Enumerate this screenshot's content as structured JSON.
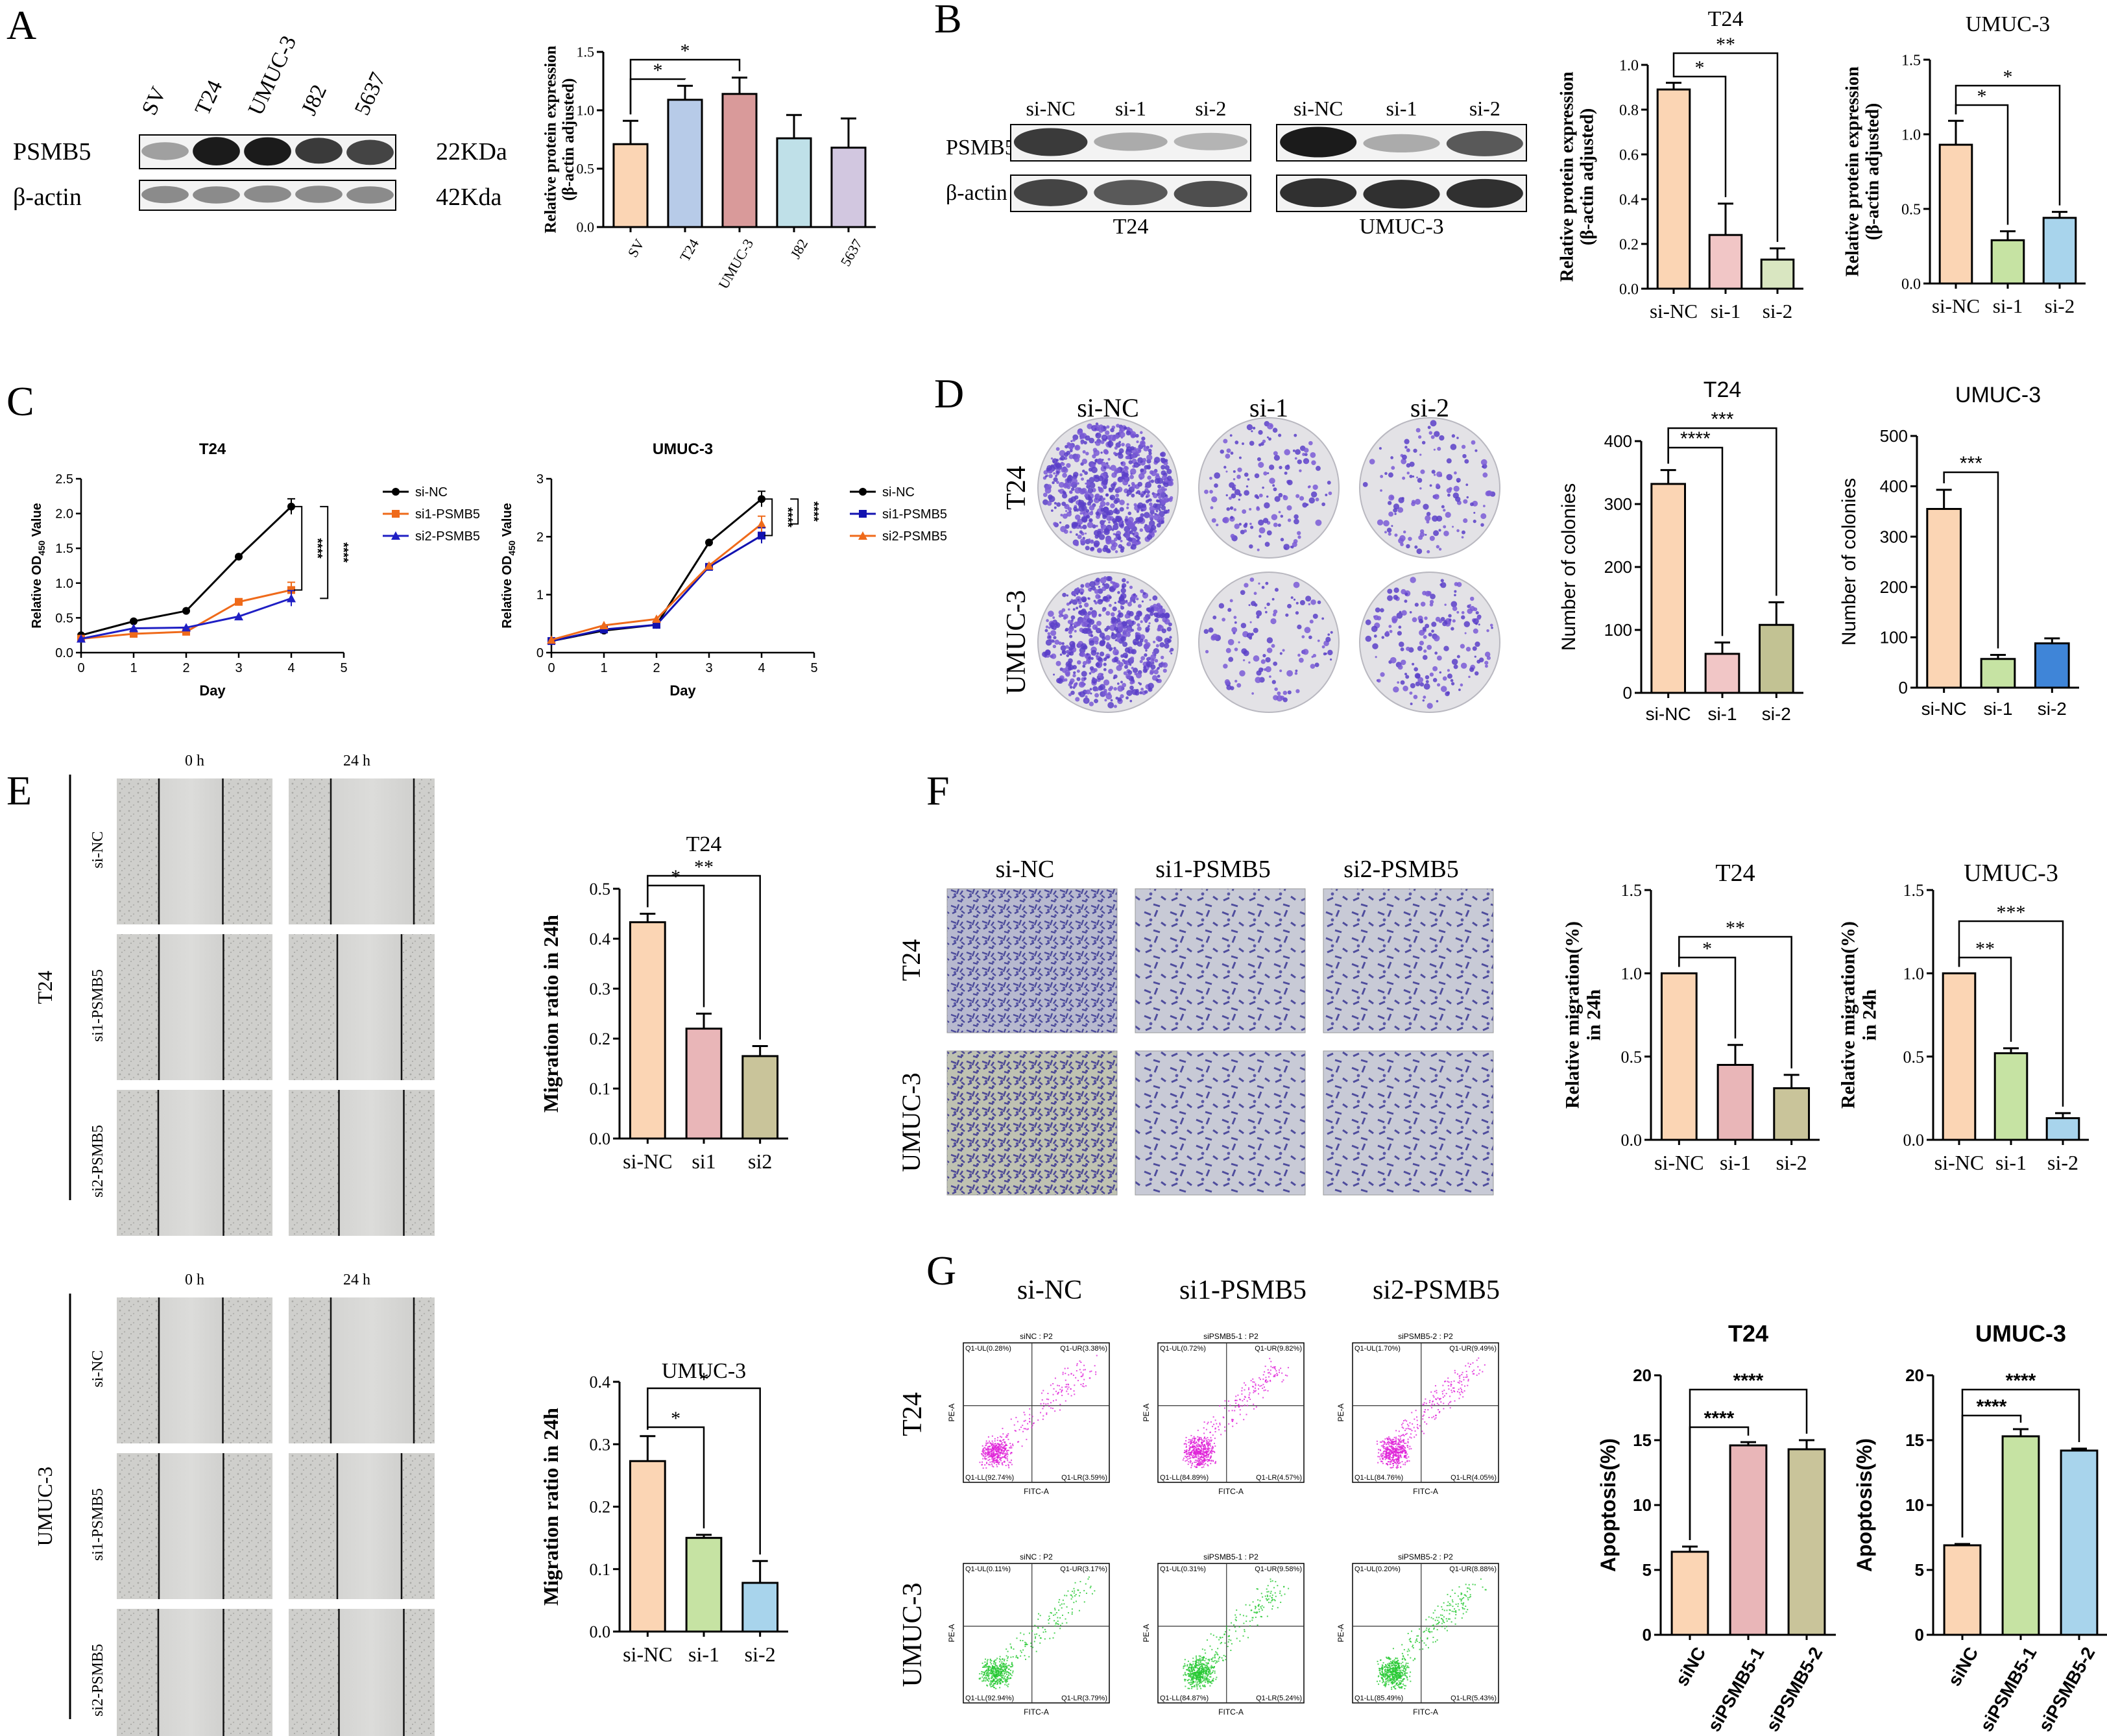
{
  "panels": {
    "A": {
      "letter": "A",
      "blot": {
        "lanes": [
          "SV",
          "T24",
          "UMUC-3",
          "J82",
          "5637"
        ],
        "rows": [
          {
            "protein": "PSMB5",
            "size": "22KDa",
            "intensity": [
              0.35,
              1.0,
              1.0,
              0.85,
              0.8
            ]
          },
          {
            "protein": "β-actin",
            "size": "42Kda",
            "intensity": [
              0.45,
              0.45,
              0.45,
              0.45,
              0.45
            ]
          }
        ]
      }
    },
    "B": {
      "letter": "B",
      "blots": [
        {
          "cell": "T24",
          "lanes": [
            "si-NC",
            "si-1",
            "si-2"
          ],
          "rows": [
            {
              "protein": "PSMB5",
              "intensity": [
                0.85,
                0.3,
                0.25
              ]
            },
            {
              "protein": "β-actin",
              "intensity": [
                0.8,
                0.7,
                0.75
              ]
            }
          ]
        },
        {
          "cell": "UMUC-3",
          "lanes": [
            "si-NC",
            "si-1",
            "si-2"
          ],
          "rows": [
            {
              "protein": "PSMB5",
              "intensity": [
                1.0,
                0.3,
                0.7
              ]
            },
            {
              "protein": "β-actin",
              "intensity": [
                0.9,
                0.9,
                0.9
              ]
            }
          ]
        }
      ]
    },
    "C": {
      "letter": "C"
    },
    "D": {
      "letter": "D",
      "columns": [
        "si-NC",
        "si-1",
        "si-2"
      ],
      "rows": [
        "T24",
        "UMUC-3"
      ],
      "density": [
        [
          700,
          160,
          140
        ],
        [
          600,
          130,
          180
        ]
      ]
    },
    "E": {
      "letter": "E",
      "timepoints": [
        "0 h",
        "24 h"
      ],
      "groups": [
        {
          "cell": "T24",
          "rows": [
            "si-NC",
            "si1-PSMB5",
            "si2-PSMB5"
          ]
        },
        {
          "cell": "UMUC-3",
          "rows": [
            "si-NC",
            "si1-PSMB5",
            "si2-PSMB5"
          ]
        }
      ]
    },
    "F": {
      "letter": "F",
      "columns": [
        "si-NC",
        "si1-PSMB5",
        "si2-PSMB5"
      ],
      "rows": [
        "T24",
        "UMUC-3"
      ]
    },
    "G": {
      "letter": "G",
      "columns": [
        "si-NC",
        "si1-PSMB5",
        "si2-PSMB5"
      ],
      "rows": [
        "T24",
        "UMUC-3"
      ],
      "flow": {
        "xaxis": "FITC-A",
        "yaxis": "PE-A",
        "plots": [
          [
            {
              "title": "siNC : P2",
              "ul": "Q1-UL(0.28%)",
              "ur": "Q1-UR(3.38%)",
              "ll": "Q1-LL(92.74%)",
              "lr": "Q1-LR(3.59%)"
            },
            {
              "title": "siPSMB5-1 : P2",
              "ul": "Q1-UL(0.72%)",
              "ur": "Q1-UR(9.82%)",
              "ll": "Q1-LL(84.89%)",
              "lr": "Q1-LR(4.57%)"
            },
            {
              "title": "siPSMB5-2 : P2",
              "ul": "Q1-UL(1.70%)",
              "ur": "Q1-UR(9.49%)",
              "ll": "Q1-LL(84.76%)",
              "lr": "Q1-LR(4.05%)"
            }
          ],
          [
            {
              "title": "siNC : P2",
              "ul": "Q1-UL(0.11%)",
              "ur": "Q1-UR(3.17%)",
              "ll": "Q1-LL(92.94%)",
              "lr": "Q1-LR(3.79%)"
            },
            {
              "title": "siPSMB5-1 : P2",
              "ul": "Q1-UL(0.31%)",
              "ur": "Q1-UR(9.58%)",
              "ll": "Q1-LL(84.87%)",
              "lr": "Q1-LR(5.24%)"
            },
            {
              "title": "siPSMB5-2 : P2",
              "ul": "Q1-UL(0.20%)",
              "ur": "Q1-UR(8.88%)",
              "ll": "Q1-LL(85.49%)",
              "lr": "Q1-LR(5.43%)"
            }
          ]
        ]
      }
    }
  },
  "chart_data": [
    {
      "id": "A-bar",
      "type": "bar",
      "title": "",
      "ylabel": "Relative protein expression\n(β-actin adjusted)",
      "categories": [
        "SV",
        "T24",
        "UMUC-3",
        "J82",
        "5637"
      ],
      "values": [
        0.71,
        1.09,
        1.14,
        0.76,
        0.68
      ],
      "errors": [
        0.2,
        0.12,
        0.14,
        0.2,
        0.25
      ],
      "ylim": [
        0,
        1.5
      ],
      "yticks": [
        0.0,
        0.5,
        1.0,
        1.5
      ],
      "colors": [
        "#fbd5b4",
        "#b7cbe8",
        "#d99a9a",
        "#bfe0e8",
        "#d2c7e0"
      ],
      "significance": [
        {
          "from": 0,
          "to": 1,
          "label": "*"
        },
        {
          "from": 0,
          "to": 2,
          "label": "*"
        }
      ]
    },
    {
      "id": "B-T24",
      "type": "bar",
      "title": "T24",
      "ylabel": "Relative protein expression\n(β-actin adjusted)",
      "categories": [
        "si-NC",
        "si-1",
        "si-2"
      ],
      "values": [
        0.89,
        0.24,
        0.13
      ],
      "errors": [
        0.03,
        0.14,
        0.05
      ],
      "ylim": [
        0,
        1.0
      ],
      "yticks": [
        0.0,
        0.2,
        0.4,
        0.6,
        0.8,
        1.0
      ],
      "colors": [
        "#fbd5b4",
        "#f1c6c6",
        "#d9e6c1"
      ],
      "significance": [
        {
          "from": 0,
          "to": 1,
          "label": "*"
        },
        {
          "from": 0,
          "to": 2,
          "label": "**"
        }
      ]
    },
    {
      "id": "B-UMUC3",
      "type": "bar",
      "title": "UMUC-3",
      "ylabel": "Relative protein expression\n(β-actin adjusted)",
      "categories": [
        "si-NC",
        "si-1",
        "si-2"
      ],
      "values": [
        0.93,
        0.29,
        0.44
      ],
      "errors": [
        0.16,
        0.06,
        0.04
      ],
      "ylim": [
        0,
        1.5
      ],
      "yticks": [
        0.0,
        0.5,
        1.0,
        1.5
      ],
      "colors": [
        "#fbd5b4",
        "#c6e3a3",
        "#a8d4ec"
      ],
      "significance": [
        {
          "from": 0,
          "to": 1,
          "label": "*"
        },
        {
          "from": 0,
          "to": 2,
          "label": "*"
        }
      ]
    },
    {
      "id": "C-T24",
      "type": "line",
      "title": "T24",
      "xlabel": "Day",
      "ylabel": "Relative OD",
      "ylabel_sub": "450",
      "ylabel_tail": " Value",
      "x": [
        0,
        1,
        2,
        3,
        4
      ],
      "xlim": [
        0,
        5
      ],
      "ylim": [
        0,
        2.5
      ],
      "xticks": [
        0,
        1,
        2,
        3,
        4,
        5
      ],
      "yticks": [
        0.0,
        0.5,
        1.0,
        1.5,
        2.0,
        2.5
      ],
      "series": [
        {
          "name": "si-NC",
          "values": [
            0.25,
            0.45,
            0.6,
            1.38,
            2.1
          ],
          "color": "#000000",
          "marker": "circle"
        },
        {
          "name": "si1-PSMB5",
          "values": [
            0.2,
            0.27,
            0.3,
            0.73,
            0.9
          ],
          "color": "#ef6a1a",
          "marker": "square"
        },
        {
          "name": "si2-PSMB5",
          "values": [
            0.2,
            0.35,
            0.36,
            0.52,
            0.78
          ],
          "color": "#1f1fc4",
          "marker": "triangle"
        }
      ],
      "significance": [
        "****",
        "****"
      ]
    },
    {
      "id": "C-UMUC3",
      "type": "line",
      "title": "UMUC-3",
      "xlabel": "Day",
      "ylabel": "Relative OD",
      "ylabel_sub": "450",
      "ylabel_tail": " Value",
      "x": [
        0,
        1,
        2,
        3,
        4
      ],
      "xlim": [
        0,
        5
      ],
      "ylim": [
        0,
        3
      ],
      "xticks": [
        0,
        1,
        2,
        3,
        4,
        5
      ],
      "yticks": [
        0,
        1,
        2,
        3
      ],
      "series": [
        {
          "name": "si-NC",
          "values": [
            0.2,
            0.38,
            0.48,
            1.9,
            2.65
          ],
          "color": "#000000",
          "marker": "circle"
        },
        {
          "name": "si1-PSMB5",
          "values": [
            0.2,
            0.4,
            0.48,
            1.48,
            2.02
          ],
          "color": "#1212b0",
          "marker": "square"
        },
        {
          "name": "si2-PSMB5",
          "values": [
            0.22,
            0.47,
            0.58,
            1.5,
            2.22
          ],
          "color": "#ef6a1a",
          "marker": "triangle"
        }
      ],
      "significance": [
        "****",
        "****"
      ]
    },
    {
      "id": "D-T24",
      "type": "bar",
      "title": "T24",
      "ylabel": "Number of colonies",
      "categories": [
        "si-NC",
        "si-1",
        "si-2"
      ],
      "values": [
        332,
        62,
        108
      ],
      "errors": [
        22,
        18,
        36
      ],
      "ylim": [
        0,
        400
      ],
      "yticks": [
        0,
        100,
        200,
        300,
        400
      ],
      "colors": [
        "#fbd5b4",
        "#f1c6c6",
        "#c2c293"
      ],
      "significance": [
        {
          "from": 0,
          "to": 1,
          "label": "****"
        },
        {
          "from": 0,
          "to": 2,
          "label": "***"
        }
      ]
    },
    {
      "id": "D-UMUC3",
      "type": "bar",
      "title": "UMUC-3",
      "ylabel": "Number of colonies",
      "categories": [
        "si-NC",
        "si-1",
        "si-2"
      ],
      "values": [
        355,
        57,
        88
      ],
      "errors": [
        38,
        8,
        10
      ],
      "ylim": [
        0,
        500
      ],
      "yticks": [
        0,
        100,
        200,
        300,
        400,
        500
      ],
      "colors": [
        "#fbd5b4",
        "#c6e3a3",
        "#3f85d8"
      ],
      "significance": [
        {
          "from": 0,
          "to": 1,
          "label": "***"
        }
      ]
    },
    {
      "id": "E-T24",
      "type": "bar",
      "title": "T24",
      "ylabel": "Migration ratio in 24h",
      "categories": [
        "si-NC",
        "si1",
        "si2"
      ],
      "values": [
        0.433,
        0.22,
        0.165
      ],
      "errors": [
        0.017,
        0.03,
        0.02
      ],
      "ylim": [
        0,
        0.5
      ],
      "yticks": [
        0.0,
        0.1,
        0.2,
        0.3,
        0.4,
        0.5
      ],
      "colors": [
        "#fbd5b4",
        "#e9b6b8",
        "#c9c49a"
      ],
      "significance": [
        {
          "from": 0,
          "to": 1,
          "label": "*"
        },
        {
          "from": 0,
          "to": 2,
          "label": "**"
        }
      ]
    },
    {
      "id": "E-UMUC3",
      "type": "bar",
      "title": "UMUC-3",
      "ylabel": "Migration ratio in 24h",
      "categories": [
        "si-NC",
        "si-1",
        "si-2"
      ],
      "values": [
        0.273,
        0.15,
        0.078
      ],
      "errors": [
        0.04,
        0.005,
        0.035
      ],
      "ylim": [
        0,
        0.4
      ],
      "yticks": [
        0.0,
        0.1,
        0.2,
        0.3,
        0.4
      ],
      "colors": [
        "#fbd5b4",
        "#c6e3a3",
        "#a8d4ec"
      ],
      "significance": [
        {
          "from": 0,
          "to": 1,
          "label": "*"
        },
        {
          "from": 0,
          "to": 2,
          "label": "*"
        }
      ]
    },
    {
      "id": "F-T24",
      "type": "bar",
      "title": "T24",
      "ylabel": "Relative migration(%)\nin 24h",
      "categories": [
        "si-NC",
        "si-1",
        "si-2"
      ],
      "values": [
        1.0,
        0.45,
        0.31
      ],
      "errors": [
        0.0,
        0.12,
        0.08
      ],
      "ylim": [
        0,
        1.5
      ],
      "yticks": [
        0.0,
        0.5,
        1.0,
        1.5
      ],
      "colors": [
        "#fbd5b4",
        "#e9b6b8",
        "#c9c49a"
      ],
      "significance": [
        {
          "from": 0,
          "to": 1,
          "label": "*"
        },
        {
          "from": 0,
          "to": 2,
          "label": "**"
        }
      ]
    },
    {
      "id": "F-UMUC3",
      "type": "bar",
      "title": "UMUC-3",
      "ylabel": "Relative migration(%)\nin 24h",
      "categories": [
        "si-NC",
        "si-1",
        "si-2"
      ],
      "values": [
        1.0,
        0.52,
        0.13
      ],
      "errors": [
        0.0,
        0.03,
        0.03
      ],
      "ylim": [
        0,
        1.5
      ],
      "yticks": [
        0.0,
        0.5,
        1.0,
        1.5
      ],
      "colors": [
        "#fbd5b4",
        "#c6e3a3",
        "#a8d4ec"
      ],
      "significance": [
        {
          "from": 0,
          "to": 1,
          "label": "**"
        },
        {
          "from": 0,
          "to": 2,
          "label": "***"
        }
      ]
    },
    {
      "id": "G-T24",
      "type": "bar",
      "title": "T24",
      "ylabel": "Apoptosis(%)",
      "categories": [
        "siNC",
        "siPSMB5-1",
        "siPSMB5-2"
      ],
      "values": [
        6.4,
        14.6,
        14.3
      ],
      "errors": [
        0.4,
        0.25,
        0.7
      ],
      "ylim": [
        0,
        20
      ],
      "yticks": [
        0,
        5,
        10,
        15,
        20
      ],
      "colors": [
        "#fbd5b4",
        "#e9b6b8",
        "#c9c49a"
      ],
      "significance": [
        {
          "from": 0,
          "to": 1,
          "label": "****"
        },
        {
          "from": 0,
          "to": 2,
          "label": "****"
        }
      ]
    },
    {
      "id": "G-UMUC3",
      "type": "bar",
      "title": "UMUC-3",
      "ylabel": "Apoptosis(%)",
      "categories": [
        "siNC",
        "siPSMB5-1",
        "siPSMB5-2"
      ],
      "values": [
        6.9,
        15.3,
        14.2
      ],
      "errors": [
        0.1,
        0.55,
        0.15
      ],
      "ylim": [
        0,
        20
      ],
      "yticks": [
        0,
        5,
        10,
        15,
        20
      ],
      "colors": [
        "#fbd5b4",
        "#c6e3a3",
        "#a8d4ec"
      ],
      "significance": [
        {
          "from": 0,
          "to": 1,
          "label": "****"
        },
        {
          "from": 0,
          "to": 2,
          "label": "****"
        }
      ]
    }
  ]
}
